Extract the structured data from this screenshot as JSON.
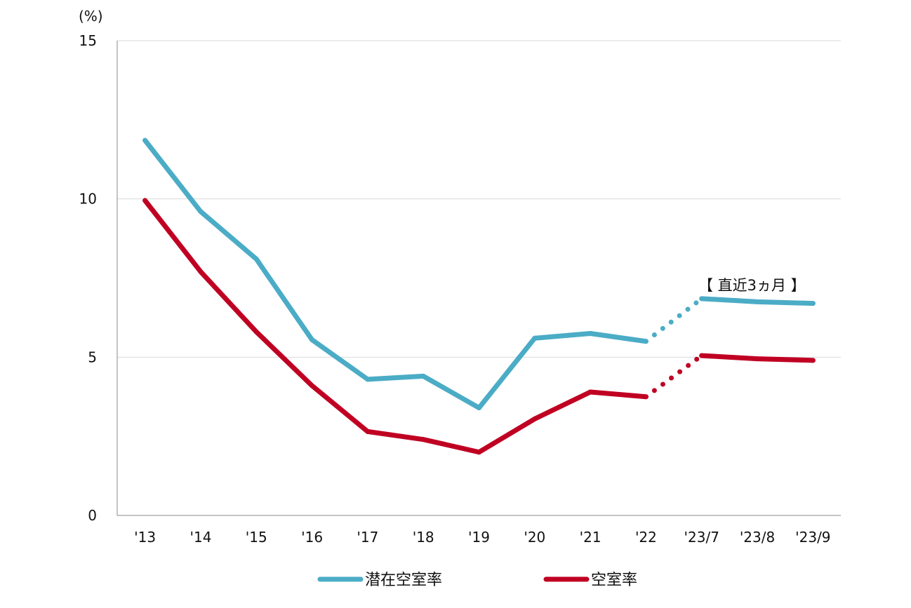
{
  "chart_data": {
    "type": "line",
    "ylabel": "(%)",
    "ylim": [
      0,
      15
    ],
    "yticks": [
      "0",
      "5",
      "10",
      "15"
    ],
    "categories": [
      "'13",
      "'14",
      "'15",
      "'16",
      "'17",
      "'18",
      "'19",
      "'20",
      "'21",
      "'22",
      "'23/7",
      "'23/8",
      "'23/9"
    ],
    "series": [
      {
        "name": "潜在空室率",
        "color": "#4bacc6",
        "values": [
          11.85,
          9.6,
          8.1,
          5.55,
          4.3,
          4.4,
          3.4,
          5.6,
          5.75,
          5.5,
          6.85,
          6.75,
          6.7
        ]
      },
      {
        "name": "空室率",
        "color": "#c00023",
        "values": [
          9.95,
          7.7,
          5.8,
          4.1,
          2.65,
          2.4,
          2.0,
          3.05,
          3.9,
          3.75,
          5.05,
          4.95,
          4.9
        ]
      }
    ],
    "solid_until_index": 9,
    "annotation": "【 直近3ヵ月 】",
    "grid": "horizontal",
    "legend_position": "bottom"
  }
}
